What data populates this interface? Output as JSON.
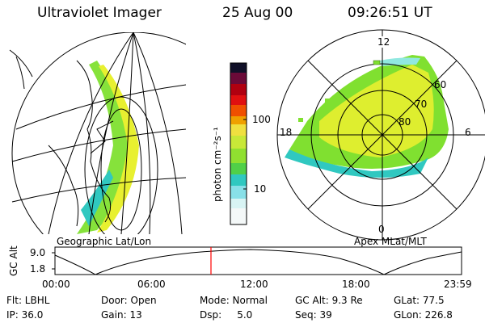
{
  "header": {
    "instrument": "Ultraviolet Imager",
    "date": "25 Aug 00",
    "time": "09:26:51 UT"
  },
  "colorbar": {
    "unit_label": "photon cm⁻²s⁻¹",
    "ticks": [
      "100",
      "10"
    ]
  },
  "geo_map": {
    "label": "Geographic Lat/Lon"
  },
  "polar_map": {
    "label": "Apex MLat/MLT",
    "mlt_labels": {
      "top": "12",
      "left": "18",
      "right": "6",
      "bottom": "0"
    },
    "lat_labels": [
      "60",
      "70",
      "80"
    ]
  },
  "altitude_plot": {
    "axis_label": "GC Alt",
    "y_ticks": [
      "9.0",
      "1.8"
    ],
    "x_ticks": [
      "00:00",
      "06:00",
      "12:00",
      "18:00",
      "23:59"
    ]
  },
  "info": {
    "row1": {
      "filter": "Flt: LBHL",
      "door": "Door: Open",
      "mode": "Mode: Normal",
      "gc_alt": "GC Alt: 9.3 Re",
      "glat": "GLat: 77.5"
    },
    "row2": {
      "ip": "IP: 36.0",
      "gain": "Gain: 13",
      "dsp": "Dsp:     5.0",
      "seq": "Seq: 39",
      "glon": "GLon: 226.8"
    }
  },
  "colors": {
    "grid": "#000000",
    "marker": "#ff0000",
    "aurora_low": "#30c8c0",
    "aurora_mid": "#80e030",
    "aurora_high": "#e8f030"
  }
}
